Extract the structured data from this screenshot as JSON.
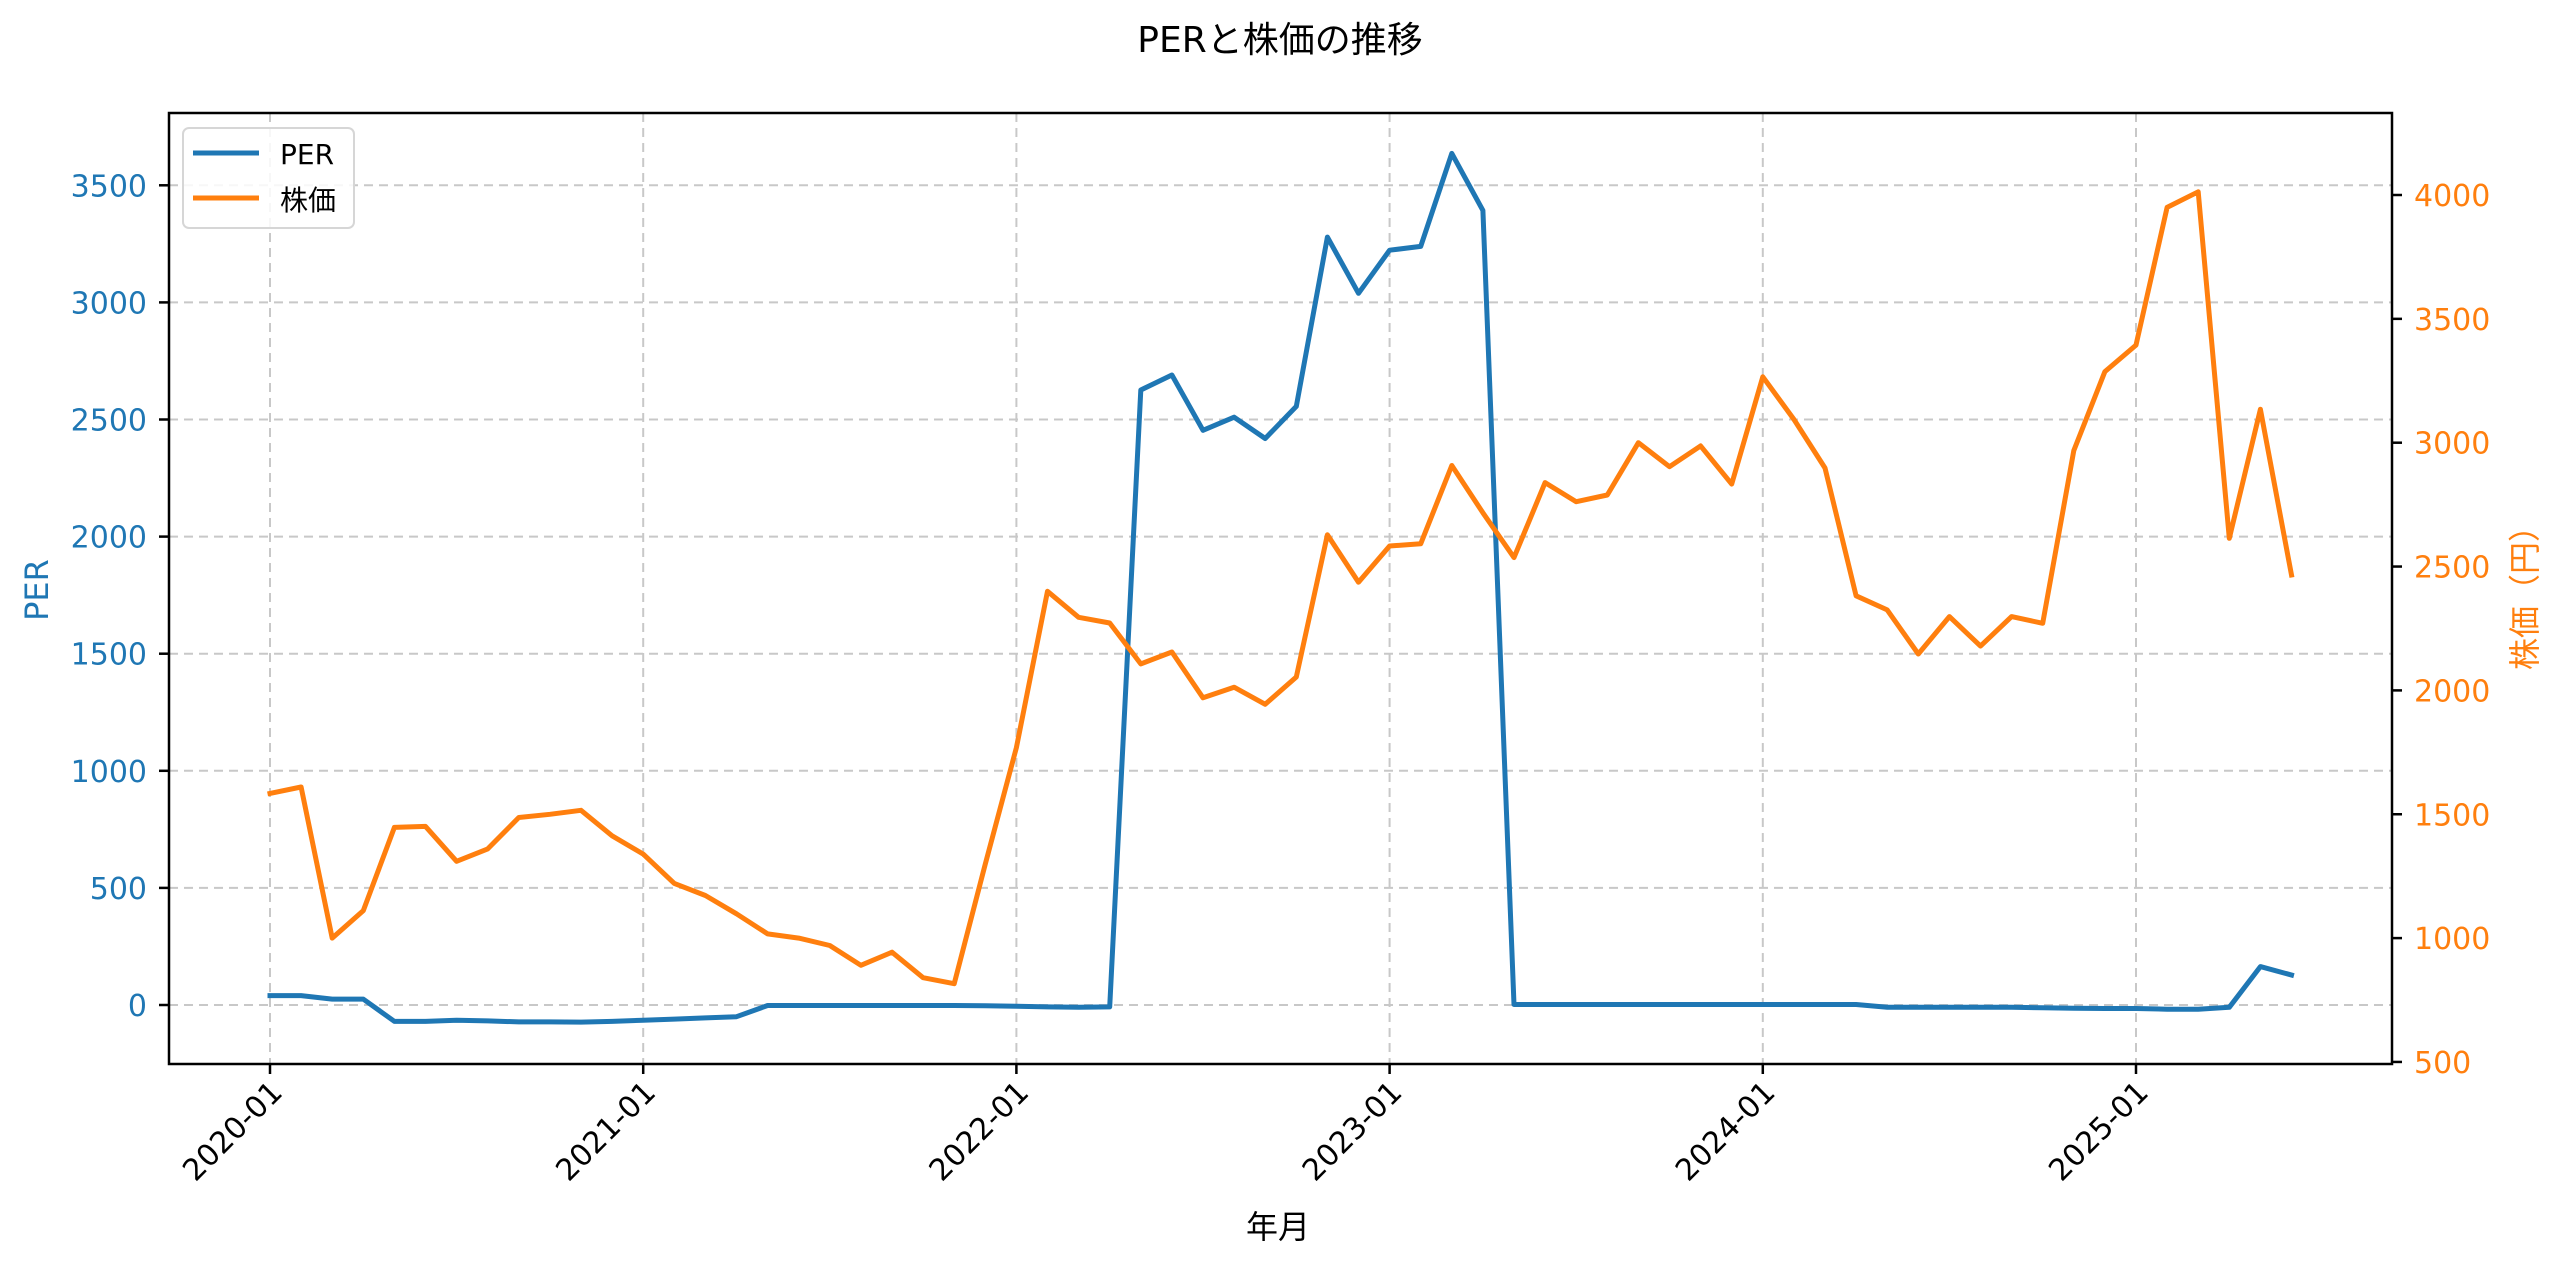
{
  "chart_data": {
    "type": "line",
    "title": "PERと株価の推移",
    "xlabel": "年月",
    "ylabel": "PER",
    "ylabel_right": "株価（円）",
    "x_tick_labels": [
      "2020-01",
      "2021-01",
      "2022-01",
      "2023-01",
      "2024-01",
      "2025-01"
    ],
    "y_ticks_left": [
      0,
      500,
      1000,
      1500,
      2000,
      2500,
      3000,
      3500
    ],
    "y_ticks_right": [
      500,
      1000,
      1500,
      2000,
      2500,
      3000,
      3500,
      4000
    ],
    "ylim_left": [
      -260,
      3800
    ],
    "ylim_right": [
      490,
      4330
    ],
    "grid": true,
    "legend_position": "upper left",
    "x": [
      "2020-01",
      "2020-02",
      "2020-03",
      "2020-04",
      "2020-05",
      "2020-06",
      "2020-07",
      "2020-08",
      "2020-09",
      "2020-10",
      "2020-11",
      "2020-12",
      "2021-01",
      "2021-02",
      "2021-03",
      "2021-04",
      "2021-05",
      "2021-06",
      "2021-07",
      "2021-08",
      "2021-09",
      "2021-10",
      "2021-11",
      "2021-12",
      "2022-01",
      "2022-02",
      "2022-03",
      "2022-04",
      "2022-05",
      "2022-06",
      "2022-07",
      "2022-08",
      "2022-09",
      "2022-10",
      "2022-11",
      "2022-12",
      "2023-01",
      "2023-02",
      "2023-03",
      "2023-04",
      "2023-05",
      "2023-06",
      "2023-07",
      "2023-08",
      "2023-09",
      "2023-10",
      "2023-11",
      "2023-12",
      "2024-01",
      "2024-02",
      "2024-03",
      "2024-04",
      "2024-05",
      "2024-06",
      "2024-07",
      "2024-08",
      "2024-09",
      "2024-10",
      "2024-11",
      "2024-12",
      "2025-01",
      "2025-02",
      "2025-03",
      "2025-04",
      "2025-05",
      "2025-06"
    ],
    "series": [
      {
        "name": "PER",
        "axis": "left",
        "color": "#1f77b4",
        "values": [
          40,
          40,
          25,
          25,
          -70,
          -70,
          -65,
          -68,
          -72,
          -72,
          -73,
          -70,
          -65,
          -60,
          -55,
          -50,
          -2,
          -2,
          -2,
          -2,
          -2,
          -2,
          -2,
          -3,
          -5,
          -8,
          -10,
          -8,
          2626,
          2690,
          2454,
          2510,
          2419,
          2556,
          3279,
          3039,
          3223,
          3239,
          3636,
          3393,
          2,
          2,
          2,
          2,
          2,
          2,
          2,
          2,
          2,
          2,
          2,
          2,
          -10,
          -10,
          -10,
          -10,
          -10,
          -12,
          -14,
          -15,
          -15,
          -18,
          -18,
          -10,
          164,
          128
        ]
      },
      {
        "name": "株価",
        "axis": "right",
        "color": "#ff7f0e",
        "values": [
          1584,
          1610,
          1000,
          1111,
          1447,
          1451,
          1310,
          1360,
          1487,
          1500,
          1516,
          1413,
          1339,
          1221,
          1172,
          1098,
          1017,
          1000,
          970,
          890,
          943,
          840,
          816,
          1299,
          1769,
          2400,
          2295,
          2272,
          2107,
          2155,
          1970,
          2013,
          1944,
          2054,
          2628,
          2437,
          2583,
          2592,
          2908,
          2717,
          2536,
          2839,
          2762,
          2789,
          3000,
          2903,
          2987,
          2833,
          3266,
          3094,
          2898,
          2382,
          2325,
          2147,
          2298,
          2179,
          2298,
          2271,
          2968,
          3287,
          3394,
          3950,
          4013,
          2614,
          3135,
          2466
        ]
      }
    ]
  },
  "legend": {
    "items": [
      {
        "label": "PER",
        "color": "#1f77b4"
      },
      {
        "label": "株価",
        "color": "#ff7f0e"
      }
    ]
  },
  "colors": {
    "left_axis": "#1f77b4",
    "right_axis": "#ff7f0e",
    "grid": "#c8c8c8",
    "frame": "#000000"
  }
}
